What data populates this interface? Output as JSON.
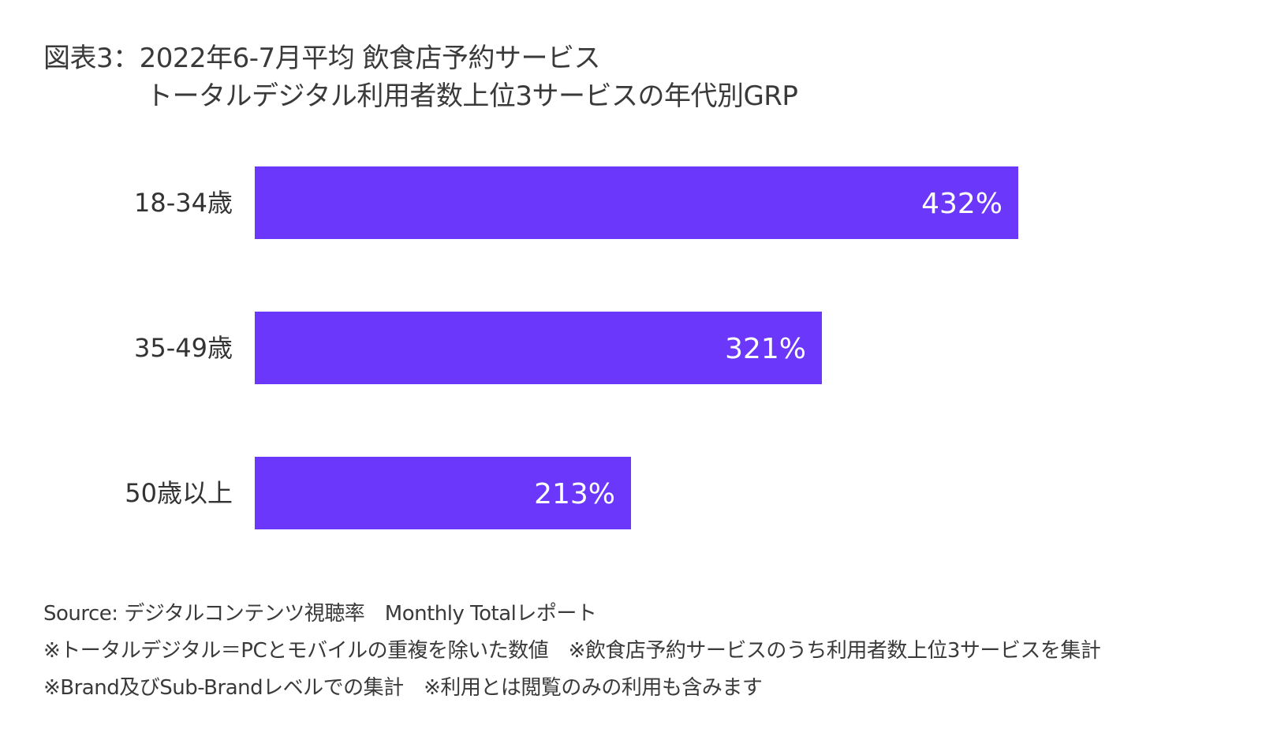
{
  "chart_data": {
    "type": "bar",
    "orientation": "horizontal",
    "title": "図表3：2022年6-7月平均 飲食店予約サービス",
    "subtitle": "トータルデジタル利用者数上位3サービスの年代別GRP",
    "categories": [
      "18-34歳",
      "35-49歳",
      "50歳以上"
    ],
    "values": [
      432,
      321,
      213
    ],
    "value_labels": [
      "432%",
      "321%",
      "213%"
    ],
    "unit": "%",
    "xlim": [
      0,
      432
    ],
    "grid": false,
    "legend": "none",
    "bar_color": "#6b38fb"
  },
  "footer": {
    "source": "Source: デジタルコンテンツ視聴率　Monthly Totalレポート",
    "note1": "※トータルデジタル＝PCとモバイルの重複を除いた数値　※飲食店予約サービスのうち利用者数上位3サービスを集計",
    "note2": "※Brand及びSub-Brandレベルでの集計　※利用とは閲覧のみの利用も含みます"
  }
}
